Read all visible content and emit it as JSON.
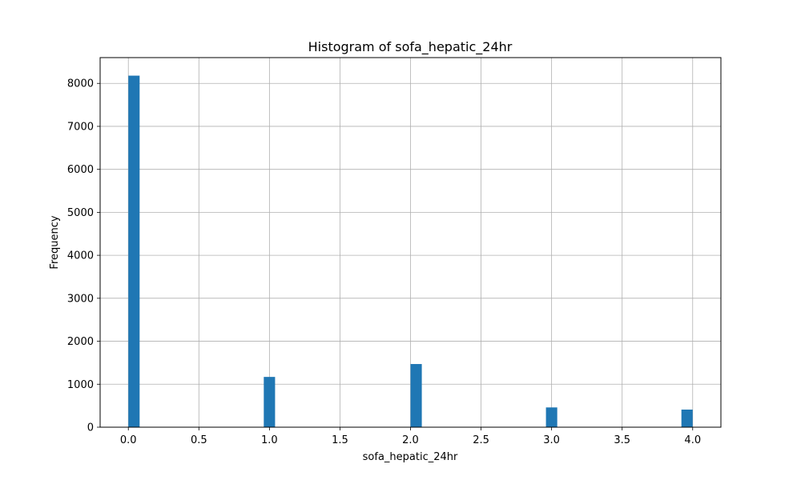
{
  "chart_data": {
    "type": "bar",
    "title": "Histogram of sofa_hepatic_24hr",
    "xlabel": "sofa_hepatic_24hr",
    "ylabel": "Frequency",
    "xlim": [
      -0.2,
      4.2
    ],
    "ylim": [
      0,
      8600
    ],
    "x_ticks": [
      0.0,
      0.5,
      1.0,
      1.5,
      2.0,
      2.5,
      3.0,
      3.5,
      4.0
    ],
    "x_tick_labels": [
      "0.0",
      "0.5",
      "1.0",
      "1.5",
      "2.0",
      "2.5",
      "3.0",
      "3.5",
      "4.0"
    ],
    "y_ticks": [
      0,
      1000,
      2000,
      3000,
      4000,
      5000,
      6000,
      7000,
      8000
    ],
    "y_tick_labels": [
      "0",
      "1000",
      "2000",
      "3000",
      "4000",
      "5000",
      "6000",
      "7000",
      "8000"
    ],
    "grid": true,
    "bar_color": "#1f77b4",
    "bins": [
      {
        "x0": 0.0,
        "x1": 0.08,
        "value": 8180
      },
      {
        "x0": 0.96,
        "x1": 1.04,
        "value": 1170
      },
      {
        "x0": 2.0,
        "x1": 2.08,
        "value": 1470
      },
      {
        "x0": 2.96,
        "x1": 3.04,
        "value": 460
      },
      {
        "x0": 3.92,
        "x1": 4.0,
        "value": 410
      }
    ]
  }
}
